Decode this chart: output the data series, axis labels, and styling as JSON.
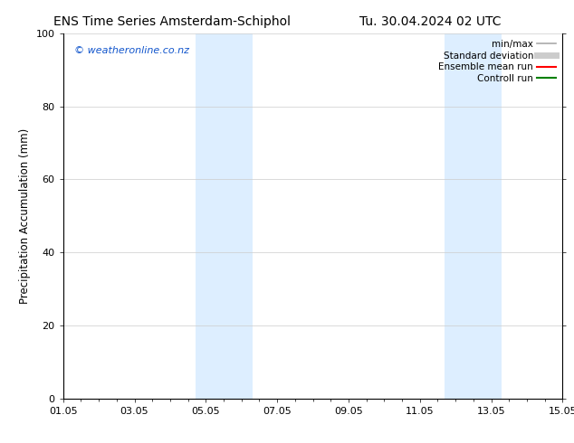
{
  "title_left": "ENS Time Series Amsterdam-Schiphol",
  "title_right": "Tu. 30.04.2024 02 UTC",
  "ylabel": "Precipitation Accumulation (mm)",
  "ylim": [
    0,
    100
  ],
  "yticks": [
    0,
    20,
    40,
    60,
    80,
    100
  ],
  "xmin_num": 0.0,
  "xmax_num": 14.0,
  "xtick_labels": [
    "01.05",
    "03.05",
    "05.05",
    "07.05",
    "09.05",
    "11.05",
    "13.05",
    "15.05"
  ],
  "xtick_positions": [
    0.0,
    2.0,
    4.0,
    6.0,
    8.0,
    10.0,
    12.0,
    14.0
  ],
  "shaded_bands": [
    {
      "xstart": 3.7,
      "xend": 5.3
    },
    {
      "xstart": 10.7,
      "xend": 12.3
    }
  ],
  "shaded_color": "#ddeeff",
  "watermark_text": "© weatheronline.co.nz",
  "watermark_color": "#1155cc",
  "legend_entries": [
    {
      "label": "min/max",
      "color": "#aaaaaa",
      "lw": 1.2,
      "style": "solid"
    },
    {
      "label": "Standard deviation",
      "color": "#cccccc",
      "lw": 5,
      "style": "solid"
    },
    {
      "label": "Ensemble mean run",
      "color": "red",
      "lw": 1.5,
      "style": "solid"
    },
    {
      "label": "Controll run",
      "color": "green",
      "lw": 1.5,
      "style": "solid"
    }
  ],
  "background_color": "#ffffff",
  "grid_color": "#cccccc",
  "title_fontsize": 10,
  "axis_fontsize": 8.5,
  "tick_fontsize": 8,
  "watermark_fontsize": 8,
  "legend_fontsize": 7.5
}
